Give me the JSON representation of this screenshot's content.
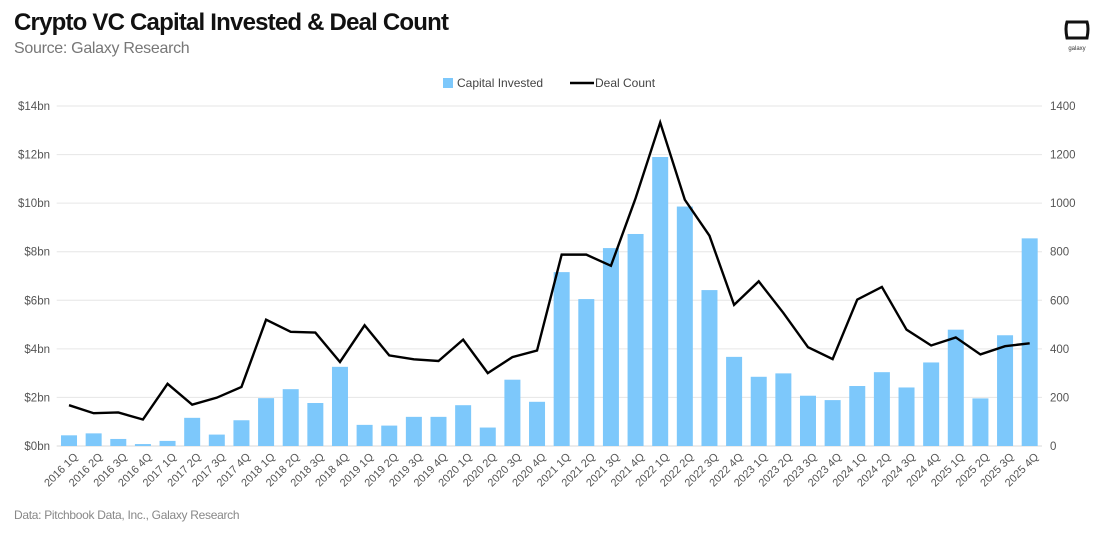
{
  "header": {
    "title": "Crypto VC Capital Invested & Deal Count",
    "subtitle": "Source: Galaxy Research"
  },
  "footer": {
    "note": "Data: Pitchbook Data, Inc., Galaxy Research"
  },
  "logo": {
    "text": "galaxy"
  },
  "colors": {
    "bar": "#7dc8fb",
    "line": "#000000",
    "grid": "#e6e6e6",
    "axis_text": "#555555"
  },
  "chart_data": {
    "type": "bar+line",
    "title": "Crypto VC Capital Invested & Deal Count",
    "subtitle": "Source: Galaxy Research",
    "legend_position": "top",
    "grid": true,
    "categories": [
      "2016 1Q",
      "2016 2Q",
      "2016 3Q",
      "2016 4Q",
      "2017 1Q",
      "2017 2Q",
      "2017 3Q",
      "2017 4Q",
      "2018 1Q",
      "2018 2Q",
      "2018 3Q",
      "2018 4Q",
      "2019 1Q",
      "2019 2Q",
      "2019 3Q",
      "2019 4Q",
      "2020 1Q",
      "2020 2Q",
      "2020 3Q",
      "2020 4Q",
      "2021 1Q",
      "2021 2Q",
      "2021 3Q",
      "2021 4Q",
      "2022 1Q",
      "2022 2Q",
      "2022 3Q",
      "2022 4Q",
      "2023 1Q",
      "2023 2Q",
      "2023 3Q",
      "2023 4Q",
      "2024 1Q",
      "2024 2Q",
      "2024 3Q",
      "2024 4Q",
      "2025 1Q",
      "2025 2Q",
      "2025 3Q",
      "2025 4Q"
    ],
    "left_axis": {
      "range": [
        0,
        14
      ],
      "ticks": [
        "$0bn",
        "$2bn",
        "$4bn",
        "$6bn",
        "$8bn",
        "$10bn",
        "$12bn",
        "$14bn"
      ]
    },
    "right_axis": {
      "range": [
        0,
        1400
      ],
      "ticks": [
        "0",
        "200",
        "400",
        "600",
        "800",
        "1000",
        "1200",
        "1400"
      ]
    },
    "series": [
      {
        "name": "Capital Invested",
        "type": "bar",
        "axis": "left",
        "unit": "$bn",
        "values": [
          0.44,
          0.52,
          0.29,
          0.08,
          0.21,
          1.16,
          0.47,
          1.06,
          1.97,
          2.34,
          1.77,
          3.26,
          0.87,
          0.84,
          1.2,
          1.2,
          1.68,
          0.76,
          2.73,
          1.82,
          7.16,
          6.05,
          8.15,
          8.73,
          11.9,
          9.86,
          6.42,
          3.67,
          2.85,
          2.99,
          2.07,
          1.89,
          2.47,
          3.04,
          2.41,
          3.44,
          4.79,
          1.96,
          4.56,
          8.55
        ]
      },
      {
        "name": "Deal Count",
        "type": "line",
        "axis": "right",
        "values": [
          168,
          135,
          138,
          109,
          256,
          170,
          199,
          243,
          520,
          470,
          467,
          346,
          497,
          373,
          357,
          350,
          438,
          300,
          366,
          393,
          788,
          788,
          742,
          1020,
          1332,
          1014,
          866,
          581,
          678,
          548,
          407,
          358,
          603,
          655,
          479,
          414,
          447,
          377,
          411,
          423
        ]
      }
    ]
  }
}
